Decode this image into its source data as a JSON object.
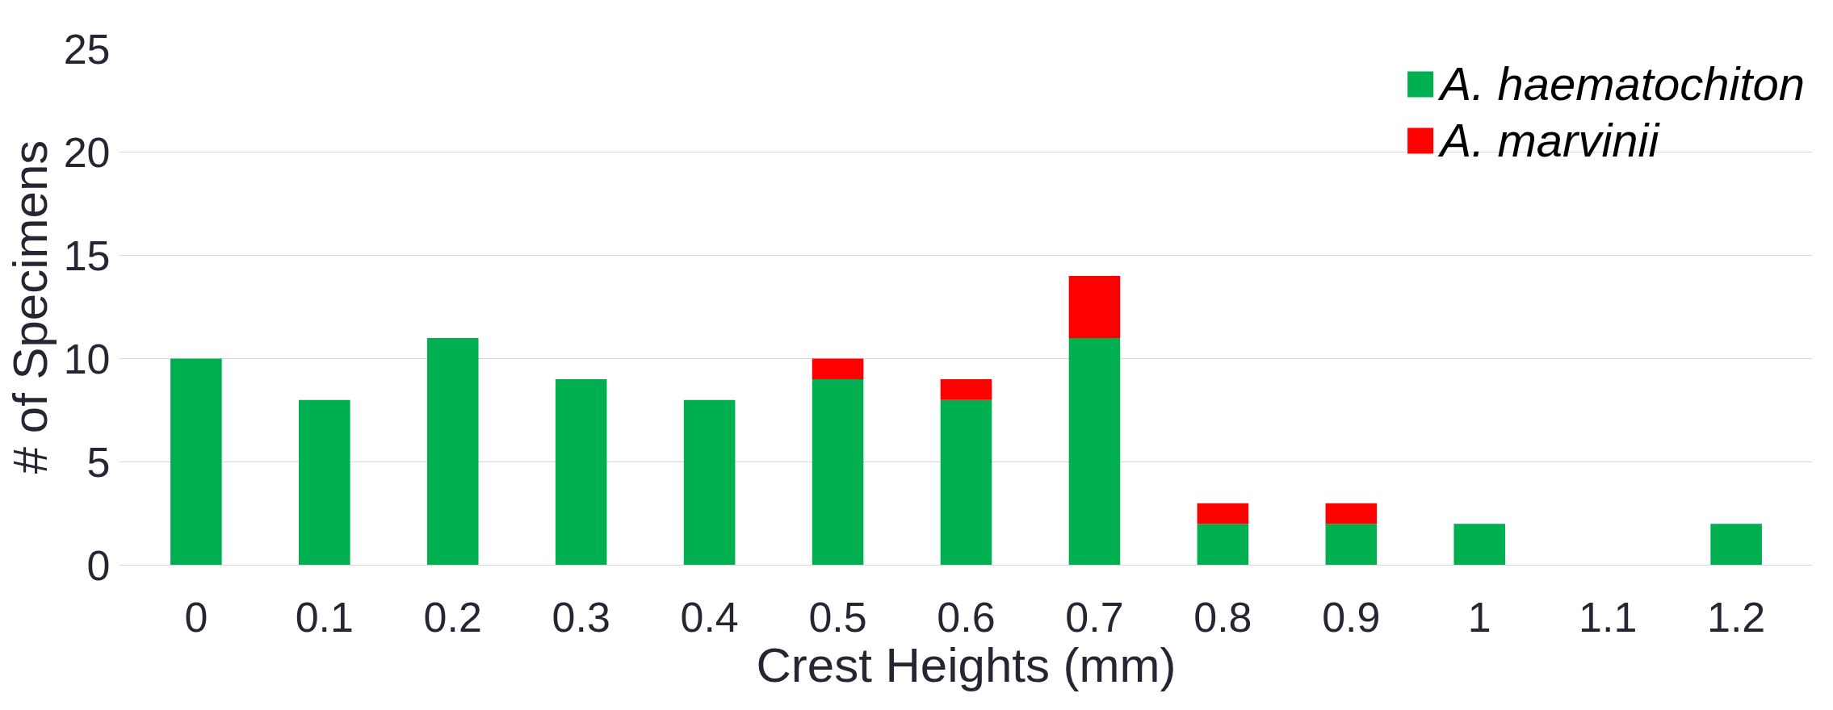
{
  "chart_data": {
    "type": "bar",
    "stacked": true,
    "xlabel": "Crest Heights (mm)",
    "ylabel": "# of Specimens",
    "categories": [
      "0",
      "0.1",
      "0.2",
      "0.3",
      "0.4",
      "0.5",
      "0.6",
      "0.7",
      "0.8",
      "0.9",
      "1",
      "1.1",
      "1.2"
    ],
    "series": [
      {
        "name": "A. haematochiton",
        "color": "#00b050",
        "values": [
          10,
          8,
          11,
          9,
          8,
          9,
          8,
          11,
          2,
          2,
          2,
          0,
          2
        ]
      },
      {
        "name": "A. marvinii",
        "color": "#ff0000",
        "values": [
          0,
          0,
          0,
          0,
          0,
          1,
          1,
          3,
          1,
          1,
          0,
          0,
          0
        ]
      }
    ],
    "ylim": [
      0,
      25
    ],
    "yticks": [
      0,
      5,
      10,
      15,
      20,
      25
    ],
    "grid": "y",
    "legend": "top right"
  }
}
